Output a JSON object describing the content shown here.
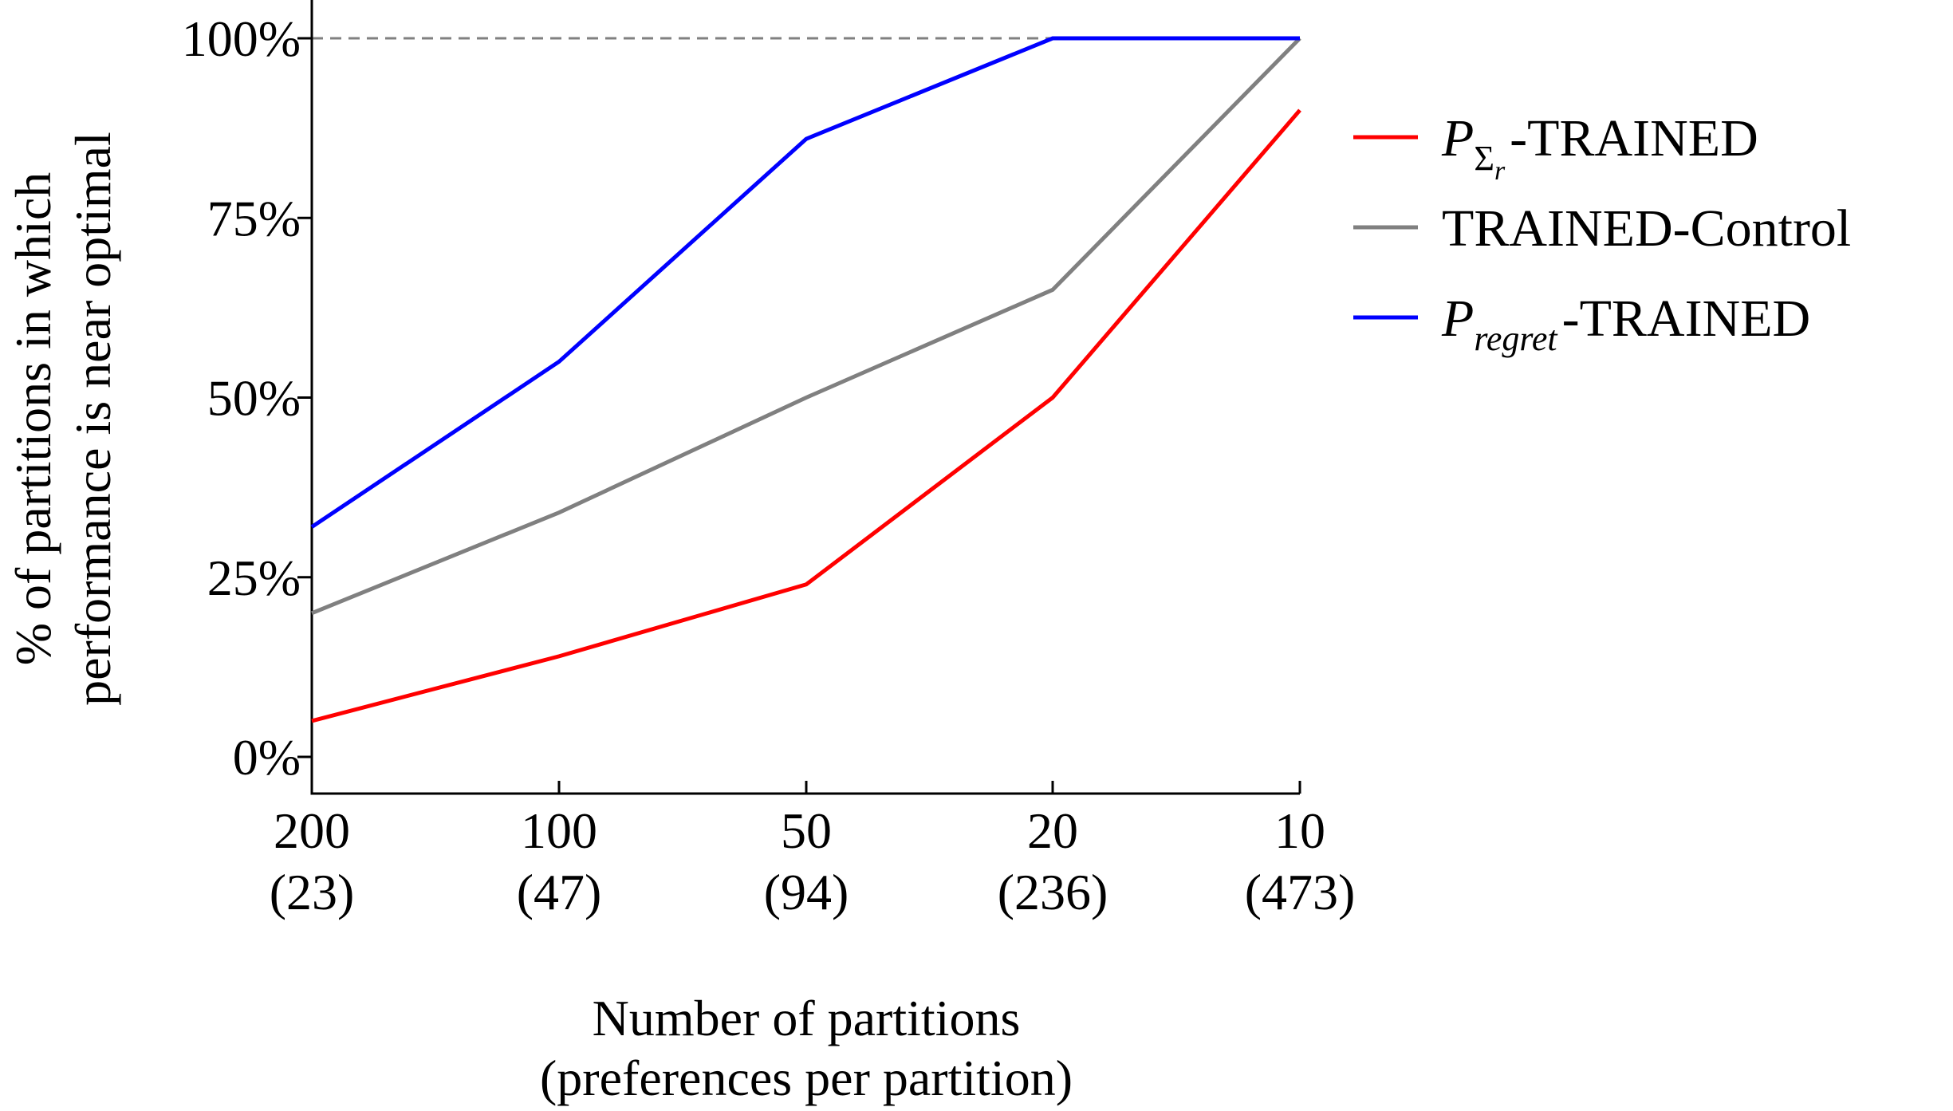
{
  "chart_data": {
    "type": "line",
    "title": "",
    "categories": [
      {
        "primary": "200",
        "secondary": "(23)"
      },
      {
        "primary": "100",
        "secondary": "(47)"
      },
      {
        "primary": "50",
        "secondary": "(94)"
      },
      {
        "primary": "20",
        "secondary": "(236)"
      },
      {
        "primary": "10",
        "secondary": "(473)"
      }
    ],
    "series": [
      {
        "name": "P_Σr-TRAINED",
        "legend": {
          "symbol": "P",
          "subscript": "Σ",
          "subsubscript": "r",
          "suffix": "-TRAINED"
        },
        "color": "#ff0000",
        "values": [
          5,
          14,
          24,
          50,
          90
        ]
      },
      {
        "name": "TRAINED-Control",
        "legend": {
          "symbol": "",
          "subscript": "",
          "subsubscript": "",
          "suffix": "TRAINED-Control"
        },
        "color": "#808080",
        "values": [
          20,
          34,
          50,
          65,
          100
        ]
      },
      {
        "name": "P_regret-TRAINED",
        "legend": {
          "symbol": "P",
          "subscript": "regret",
          "subsubscript": "",
          "suffix": "-TRAINED"
        },
        "color": "#0000ff",
        "values": [
          32,
          55,
          86,
          100,
          100
        ]
      }
    ],
    "reference_line": {
      "value": 100,
      "style": "dashed",
      "color": "#808080"
    },
    "yticks": [
      {
        "value": 0,
        "label": "0%"
      },
      {
        "value": 25,
        "label": "25%"
      },
      {
        "value": 50,
        "label": "50%"
      },
      {
        "value": 75,
        "label": "75%"
      },
      {
        "value": 100,
        "label": "100%"
      }
    ],
    "ylim": [
      -5,
      100
    ],
    "xlabel": [
      "Number of partitions",
      "(preferences per partition)"
    ],
    "ylabel": [
      "% of partitions in which",
      "performance is near optimal"
    ],
    "legend_position": "right"
  }
}
